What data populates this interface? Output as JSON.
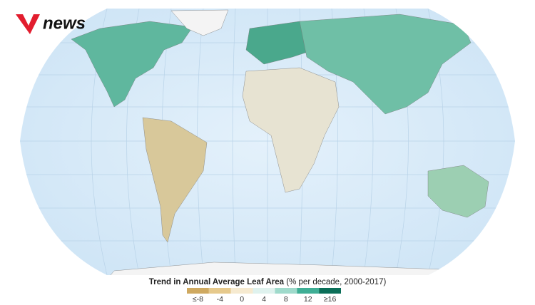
{
  "logo": {
    "text": "news"
  },
  "legend": {
    "title": "Trend in Annual Average Leaf Area",
    "subtitle": "(% per decade, 2000-2017)",
    "ticks": [
      {
        "value": -8,
        "label": "≤-8"
      },
      -4,
      0,
      4,
      8,
      12,
      {
        "value": 16,
        "label": "≥16"
      }
    ],
    "colors": [
      "#cfa960",
      "#e6c98c",
      "#f6ead0",
      "#dff2ee",
      "#9fdacb",
      "#3fae95",
      "#0b6e58"
    ]
  }
}
